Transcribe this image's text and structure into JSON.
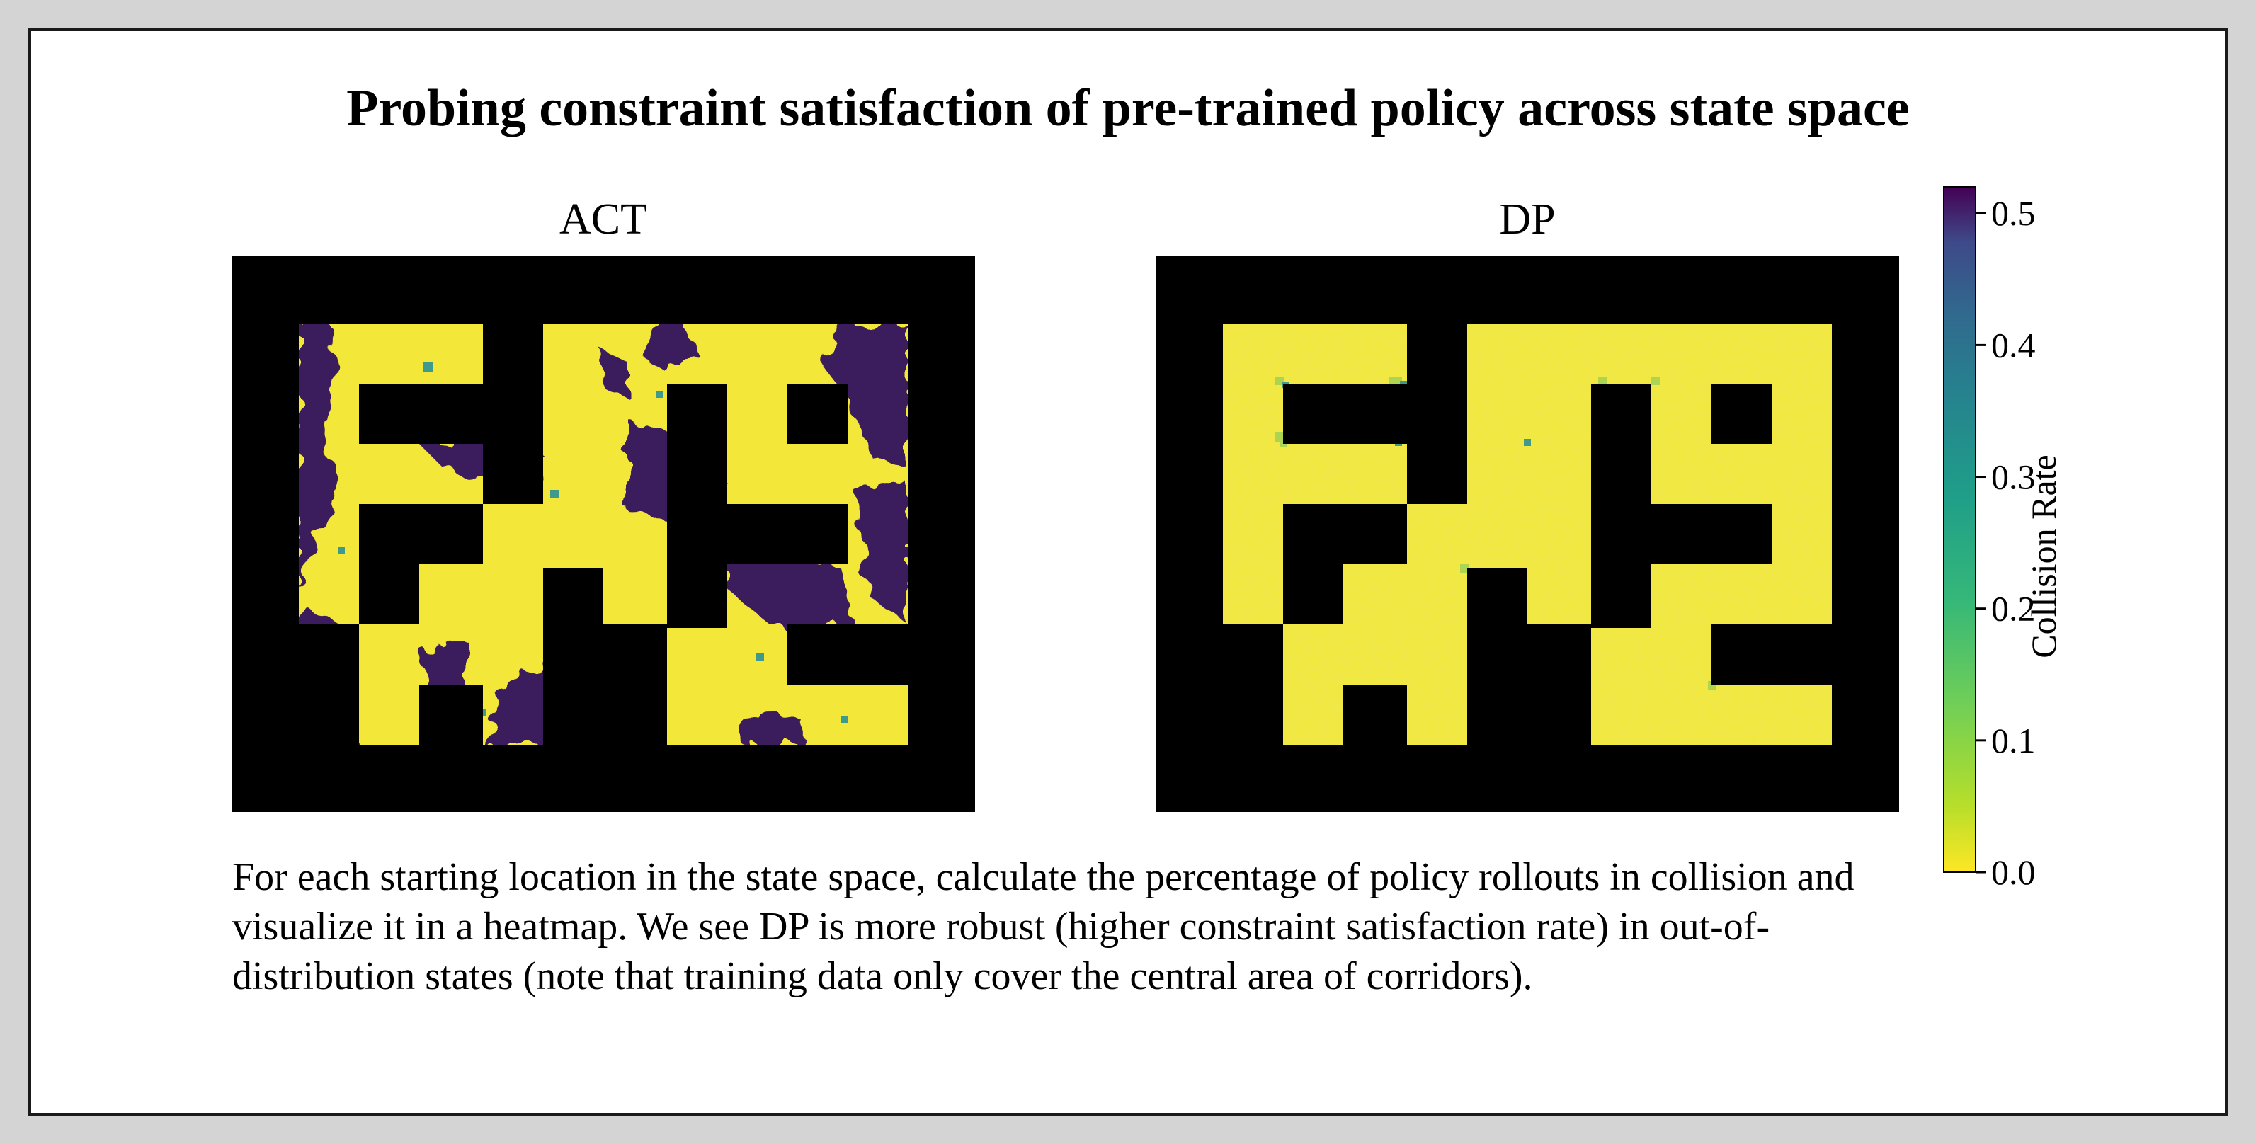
{
  "title": "Probing constraint satisfaction of pre-trained policy across state space",
  "caption": "For each starting location in the state space, calculate the percentage of policy rollouts in collision and visualize it in a heatmap. We see DP is more robust (higher constraint satisfaction rate) in out-of-distribution states (note that training data only cover the central area of corridors).",
  "chart_data": [
    {
      "type": "heatmap",
      "title": "ACT",
      "metric": "Collision Rate",
      "summary": "collision rate near 0.0 over most of the free space, with large regions near 0.5 in corridor corners and edges (out-of-distribution states)",
      "low_value": 0.0,
      "high_value": 0.52
    },
    {
      "type": "heatmap",
      "title": "DP",
      "metric": "Collision Rate",
      "summary": "collision rate near 0.0 almost everywhere, with only a few small spots near obstacle corners reaching about 0.2",
      "low_value": 0.0,
      "high_value": 0.2
    }
  ],
  "colorbar": {
    "label": "Collision Rate",
    "min": 0.0,
    "max": 0.52,
    "ticks": [
      "0.0",
      "0.1",
      "0.2",
      "0.3",
      "0.4",
      "0.5"
    ],
    "colormap": "viridis (reversed)"
  },
  "colors": {
    "low": "#f3e73a",
    "high": "#3b1a5c",
    "mid": "#3e9a8c",
    "obstacle": "#000000"
  }
}
